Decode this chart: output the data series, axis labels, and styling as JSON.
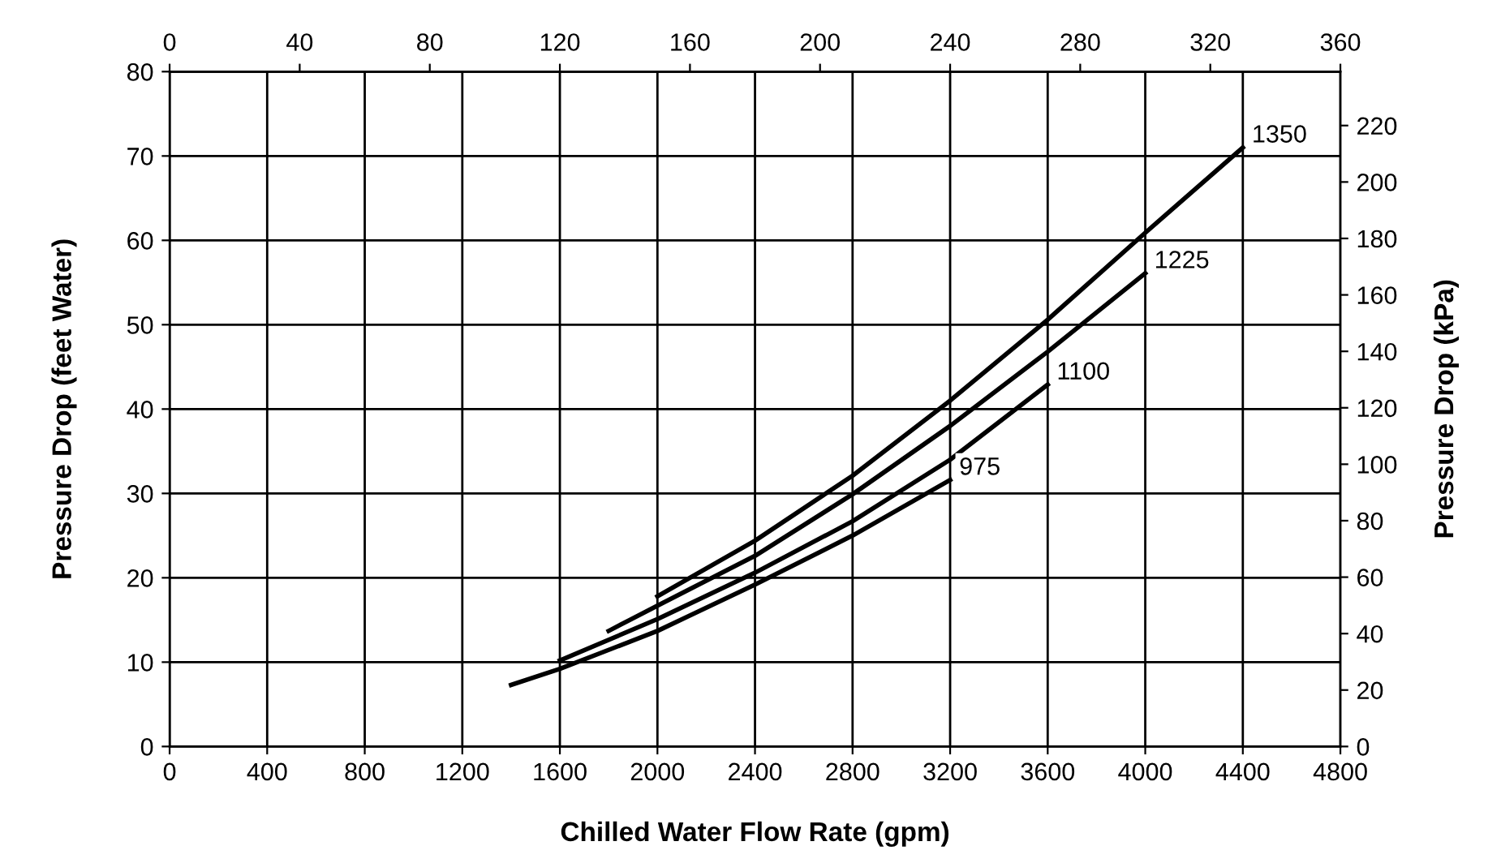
{
  "chart_data": {
    "type": "line",
    "xlabel": "Chilled Water Flow Rate (gpm)",
    "ylabel": "Pressure Drop (feet Water)",
    "y2label": "Pressure Drop (kPa)",
    "xlim": [
      0,
      4800
    ],
    "xticks": [
      0,
      400,
      800,
      1200,
      1600,
      2000,
      2400,
      2800,
      3200,
      3600,
      4000,
      4400,
      4800
    ],
    "ylim": [
      0,
      80
    ],
    "yticks": [
      0,
      10,
      20,
      30,
      40,
      50,
      60,
      70,
      80
    ],
    "y2lim": [
      0,
      239.1
    ],
    "y2ticks": [
      0,
      20,
      40,
      60,
      80,
      100,
      120,
      140,
      160,
      180,
      200,
      220
    ],
    "x2lim": [
      0,
      360
    ],
    "x2ticks": [
      0,
      40,
      80,
      120,
      160,
      200,
      240,
      280,
      320,
      360
    ],
    "grid": true,
    "legend": false,
    "marker": "none",
    "line_style": "solid",
    "series": [
      {
        "name": "975",
        "color": "#000000",
        "x": [
          1400,
          1600,
          2000,
          2400,
          2800,
          3200
        ],
        "values": [
          7.3,
          9.2,
          13.7,
          19.2,
          25,
          31.6
        ]
      },
      {
        "name": "1100",
        "color": "#000000",
        "x": [
          1600,
          2000,
          2400,
          2800,
          3200,
          3600
        ],
        "values": [
          10.2,
          15.1,
          20.6,
          26.7,
          34,
          42.9
        ]
      },
      {
        "name": "1225",
        "color": "#000000",
        "x": [
          1800,
          2000,
          2400,
          2800,
          3200,
          3600,
          4000
        ],
        "values": [
          13.7,
          16.7,
          22.6,
          29.9,
          38,
          46.8,
          56.1
        ]
      },
      {
        "name": "1350",
        "color": "#000000",
        "x": [
          2000,
          2400,
          2800,
          3200,
          3600,
          4000,
          4400
        ],
        "values": [
          17.8,
          24.4,
          32.1,
          41,
          50.6,
          60.9,
          71
        ]
      }
    ]
  }
}
